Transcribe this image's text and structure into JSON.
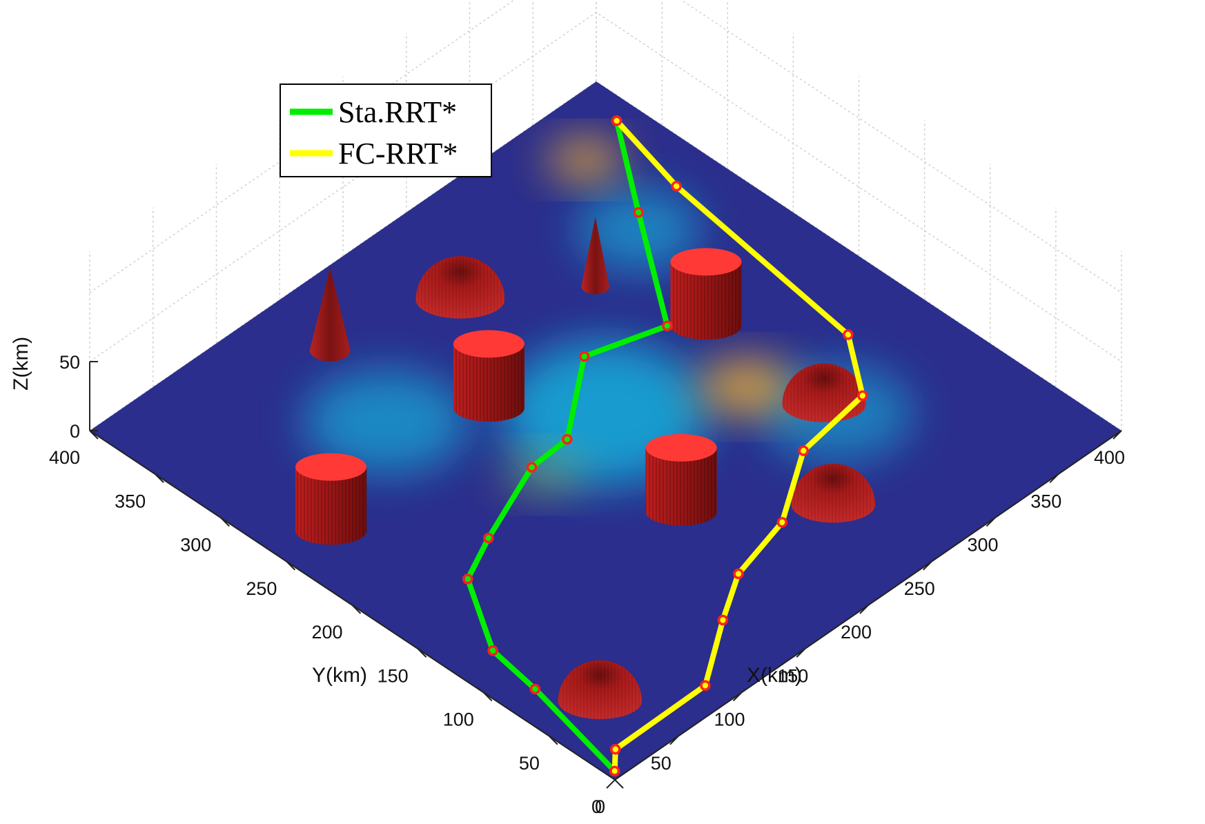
{
  "chart_data": {
    "type": "surface-3d",
    "title": "",
    "xlabel": "X(km)",
    "ylabel": "Y(km)",
    "zlabel": "Z(km)",
    "xlim": [
      0,
      400
    ],
    "ylim": [
      0,
      400
    ],
    "zlim": [
      0,
      50
    ],
    "x_ticks": [
      "0",
      "50",
      "100",
      "150",
      "200",
      "250",
      "300",
      "350",
      "400"
    ],
    "y_ticks": [
      "0",
      "50",
      "100",
      "150",
      "200",
      "250",
      "300",
      "350",
      "400"
    ],
    "z_ticks": [
      "0",
      "50"
    ],
    "grid": true,
    "legend_position": "top-left",
    "colors": {
      "sta_rrt": "#00ee00",
      "fc_rrt": "#ffff00",
      "waypoint": "#ff2020",
      "obstacle": "#d42222",
      "obstacle_top": "#ff3a36",
      "terrain_low": "#2b2e8c",
      "terrain_mid": "#19a7d6",
      "terrain_high": "#f2b431"
    },
    "series": [
      {
        "name": "Sta.RRT*",
        "points": [
          [
            5,
            5
          ],
          [
            22,
            82
          ],
          [
            28,
            120
          ],
          [
            60,
            170
          ],
          [
            92,
            185
          ],
          [
            150,
            208
          ],
          [
            180,
            210
          ],
          [
            235,
            250
          ],
          [
            285,
            235
          ],
          [
            340,
            310
          ],
          [
            385,
            370
          ]
        ]
      },
      {
        "name": "FC-RRT*",
        "points": [
          [
            5,
            5
          ],
          [
            18,
            17
          ],
          [
            90,
            18
          ],
          [
            135,
            48
          ],
          [
            168,
            68
          ],
          [
            215,
            80
          ],
          [
            265,
            112
          ],
          [
            320,
            120
          ],
          [
            350,
            160
          ],
          [
            370,
            310
          ],
          [
            385,
            370
          ]
        ]
      }
    ],
    "obstacles": [
      {
        "type": "cylinder",
        "x": 300,
        "y": 220,
        "r": 28,
        "h": 32
      },
      {
        "type": "cylinder",
        "x": 182,
        "y": 125,
        "r": 28,
        "h": 32
      },
      {
        "type": "cylinder",
        "x": 168,
        "y": 258,
        "r": 28,
        "h": 32
      },
      {
        "type": "cylinder",
        "x": 35,
        "y": 250,
        "r": 28,
        "h": 32
      },
      {
        "type": "hemisphere",
        "x": 40,
        "y": 50,
        "r": 33
      },
      {
        "type": "hemisphere",
        "x": 245,
        "y": 70,
        "r": 33
      },
      {
        "type": "hemisphere",
        "x": 220,
        "y": 330,
        "r": 35
      },
      {
        "type": "hemisphere",
        "x": 300,
        "y": 130,
        "r": 33
      },
      {
        "type": "cone",
        "x": 140,
        "y": 352,
        "r": 16,
        "h": 25
      },
      {
        "type": "cone",
        "x": 280,
        "y": 285,
        "r": 11,
        "h": 21
      }
    ]
  }
}
